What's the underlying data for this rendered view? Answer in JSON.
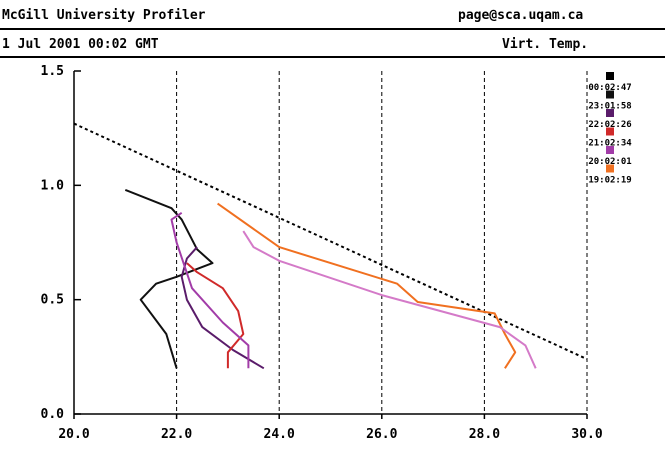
{
  "header": {
    "title": "McGill University Profiler",
    "contact": "page@sca.uqam.ca",
    "datetime": "1 Jul 2001 00:02 GMT",
    "variable": "Virt. Temp."
  },
  "chart_data": {
    "type": "line",
    "title": "",
    "xlabel": "",
    "ylabel": "",
    "xlim": [
      20.0,
      30.0
    ],
    "ylim": [
      0.0,
      1.5
    ],
    "x_ticks": [
      "20.0",
      "22.0",
      "24.0",
      "26.0",
      "28.0",
      "30.0"
    ],
    "y_ticks": [
      "0.0",
      "0.5",
      "1.0",
      "1.5"
    ],
    "grid": "vertical dashed lines at x ticks",
    "legend_position": "top-right",
    "series": [
      {
        "name": "00:02:47",
        "color": "#111111",
        "points": [
          [
            22.0,
            0.2
          ],
          [
            21.8,
            0.35
          ],
          [
            21.3,
            0.5
          ],
          [
            21.6,
            0.57
          ],
          [
            22.0,
            0.6
          ],
          [
            22.7,
            0.66
          ],
          [
            22.4,
            0.72
          ],
          [
            22.1,
            0.85
          ],
          [
            21.9,
            0.9
          ],
          [
            21.0,
            0.98
          ]
        ]
      },
      {
        "name": "23:01:58",
        "color": "#5a1c6a",
        "points": [
          [
            23.7,
            0.2
          ],
          [
            23.1,
            0.28
          ],
          [
            22.5,
            0.38
          ],
          [
            22.2,
            0.5
          ],
          [
            22.1,
            0.6
          ],
          [
            22.2,
            0.68
          ],
          [
            22.4,
            0.73
          ]
        ]
      },
      {
        "name": "22:02:26",
        "color": "#d02a2a",
        "points": [
          [
            23.0,
            0.2
          ],
          [
            23.0,
            0.27
          ],
          [
            23.3,
            0.35
          ],
          [
            23.2,
            0.45
          ],
          [
            22.9,
            0.55
          ],
          [
            22.4,
            0.62
          ],
          [
            22.2,
            0.66
          ]
        ]
      },
      {
        "name": "21:02:34",
        "color": "#a23ca8",
        "points": [
          [
            23.4,
            0.2
          ],
          [
            23.4,
            0.3
          ],
          [
            22.9,
            0.4
          ],
          [
            22.3,
            0.55
          ],
          [
            22.0,
            0.75
          ],
          [
            21.9,
            0.85
          ],
          [
            22.1,
            0.88
          ]
        ]
      },
      {
        "name": "20:02:01",
        "color": "#f07020",
        "points": [
          [
            28.4,
            0.2
          ],
          [
            28.6,
            0.27
          ],
          [
            28.4,
            0.35
          ],
          [
            28.2,
            0.44
          ],
          [
            26.7,
            0.49
          ],
          [
            26.3,
            0.57
          ],
          [
            24.0,
            0.73
          ],
          [
            22.8,
            0.92
          ]
        ]
      },
      {
        "name": "19:02:19",
        "color": "#d47ac8",
        "points": [
          [
            29.0,
            0.2
          ],
          [
            28.8,
            0.3
          ],
          [
            28.3,
            0.38
          ],
          [
            26.0,
            0.52
          ],
          [
            24.0,
            0.67
          ],
          [
            23.5,
            0.73
          ],
          [
            23.3,
            0.8
          ]
        ]
      }
    ],
    "reference_line": {
      "style": "dotted",
      "color": "#000000",
      "points": [
        [
          20.0,
          1.27
        ],
        [
          30.0,
          0.24
        ]
      ]
    }
  }
}
